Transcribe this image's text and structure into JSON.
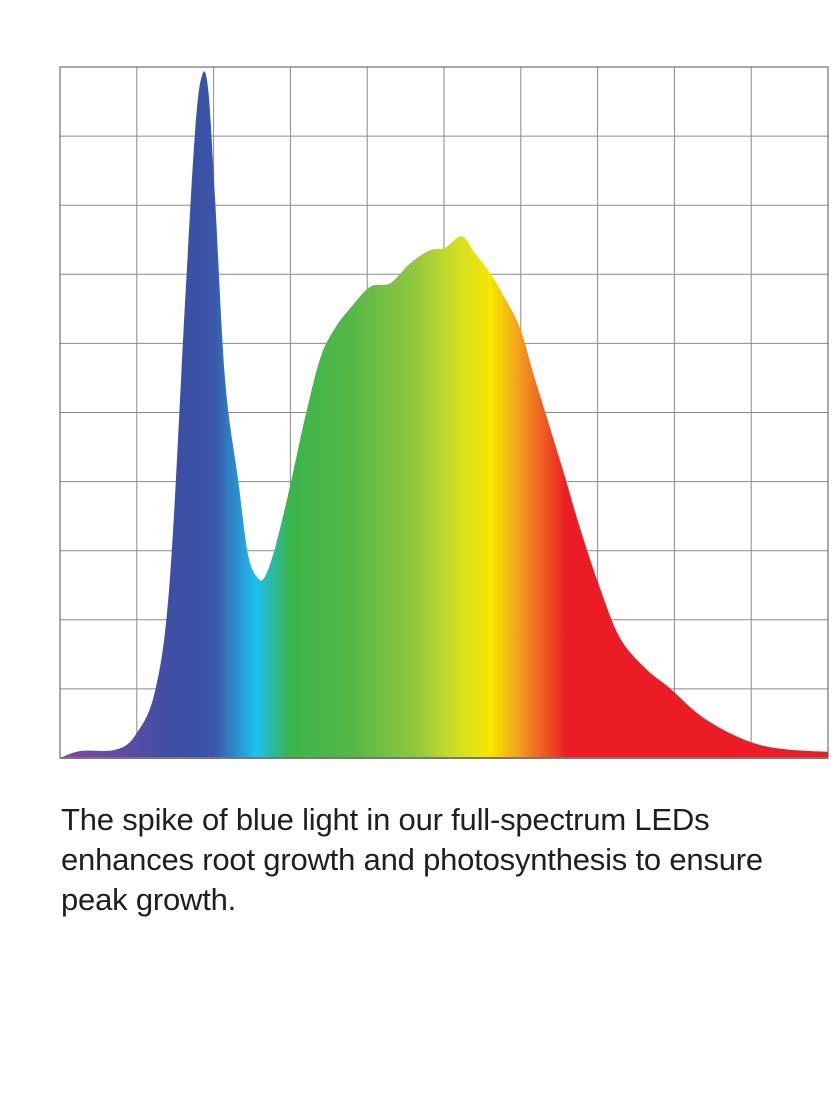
{
  "chart_data": {
    "type": "area",
    "title": "",
    "xlabel": "",
    "ylabel": "",
    "xlim": [
      0,
      10
    ],
    "ylim": [
      0,
      10
    ],
    "grid": true,
    "grid_divisions": {
      "x": 10,
      "y": 10
    },
    "fill": "horizontal spectral gradient",
    "gradient_stops": [
      {
        "at": 0.0,
        "color": "#8a3f9e"
      },
      {
        "at": 0.06,
        "color": "#6a4aa6"
      },
      {
        "at": 0.15,
        "color": "#3b4fa3"
      },
      {
        "at": 0.2,
        "color": "#3a55a8"
      },
      {
        "at": 0.255,
        "color": "#1cc0ef"
      },
      {
        "at": 0.3,
        "color": "#3bb44a"
      },
      {
        "at": 0.38,
        "color": "#55b847"
      },
      {
        "at": 0.46,
        "color": "#8fc63f"
      },
      {
        "at": 0.52,
        "color": "#d4e021"
      },
      {
        "at": 0.52,
        "color": "#d4e021"
      },
      {
        "at": 0.56,
        "color": "#f6e800"
      },
      {
        "at": 0.6,
        "color": "#f39a1f"
      },
      {
        "at": 0.66,
        "color": "#ec1c24"
      },
      {
        "at": 1.0,
        "color": "#ec1c24"
      }
    ],
    "points": [
      [
        0,
        0.0
      ],
      [
        0.26,
        0.1
      ],
      [
        0.72,
        0.12
      ],
      [
        0.98,
        0.33
      ],
      [
        1.24,
        0.98
      ],
      [
        1.43,
        2.58
      ],
      [
        1.63,
        6.63
      ],
      [
        1.76,
        9.09
      ],
      [
        1.85,
        9.88
      ],
      [
        1.93,
        9.67
      ],
      [
        2.02,
        8.07
      ],
      [
        2.15,
        5.47
      ],
      [
        2.32,
        4.02
      ],
      [
        2.45,
        2.93
      ],
      [
        2.58,
        2.6
      ],
      [
        2.67,
        2.63
      ],
      [
        2.8,
        3.04
      ],
      [
        2.99,
        3.91
      ],
      [
        3.19,
        4.92
      ],
      [
        3.39,
        5.79
      ],
      [
        3.58,
        6.22
      ],
      [
        3.78,
        6.51
      ],
      [
        4.04,
        6.82
      ],
      [
        4.3,
        6.87
      ],
      [
        4.56,
        7.16
      ],
      [
        4.82,
        7.35
      ],
      [
        5.01,
        7.38
      ],
      [
        5.23,
        7.55
      ],
      [
        5.4,
        7.31
      ],
      [
        5.6,
        7.02
      ],
      [
        5.79,
        6.66
      ],
      [
        5.99,
        6.22
      ],
      [
        6.18,
        5.5
      ],
      [
        6.38,
        4.78
      ],
      [
        6.58,
        4.05
      ],
      [
        6.77,
        3.33
      ],
      [
        7.03,
        2.46
      ],
      [
        7.29,
        1.74
      ],
      [
        7.62,
        1.3
      ],
      [
        7.94,
        1.01
      ],
      [
        8.33,
        0.62
      ],
      [
        8.72,
        0.36
      ],
      [
        9.11,
        0.19
      ],
      [
        9.51,
        0.12
      ],
      [
        10,
        0.09
      ]
    ]
  },
  "caption": "The spike of blue light in our full-spectrum LEDs enhances root growth and photosynthesis to ensure peak growth."
}
